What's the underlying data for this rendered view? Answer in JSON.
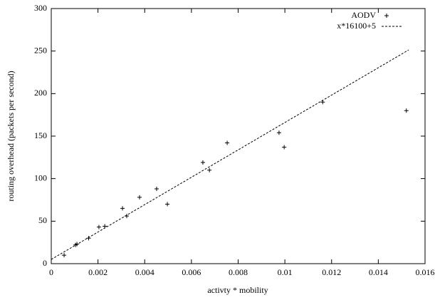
{
  "chart_data": {
    "type": "scatter",
    "xlabel": "activty * mobility",
    "ylabel": "routing overhead (packets per second)",
    "xlim": [
      0,
      0.016
    ],
    "xticks": [
      0,
      0.002,
      0.004,
      0.006,
      0.008,
      0.01,
      0.012,
      0.014,
      0.016
    ],
    "ylim": [
      0,
      300
    ],
    "yticks": [
      0,
      50,
      100,
      150,
      200,
      250,
      300
    ],
    "legend": "top-right",
    "series": [
      {
        "name": "AODV",
        "color": "#000000",
        "style": "points",
        "x": [
          0.00055,
          0.00104,
          0.0011,
          0.0016,
          0.00204,
          0.00229,
          0.00305,
          0.00323,
          0.00378,
          0.00451,
          0.00497,
          0.00649,
          0.00677,
          0.00753,
          0.00975,
          0.00997,
          0.01162,
          0.0152
        ],
        "values": [
          10,
          22,
          23,
          30,
          43,
          44,
          65,
          56,
          78,
          88,
          70,
          119,
          110,
          142,
          154,
          137,
          190,
          180
        ]
      },
      {
        "name": "x*16100+5",
        "color": "#000000",
        "style": "dashed",
        "x": [
          0,
          0.0153
        ],
        "values": [
          5,
          251.33
        ]
      }
    ]
  }
}
